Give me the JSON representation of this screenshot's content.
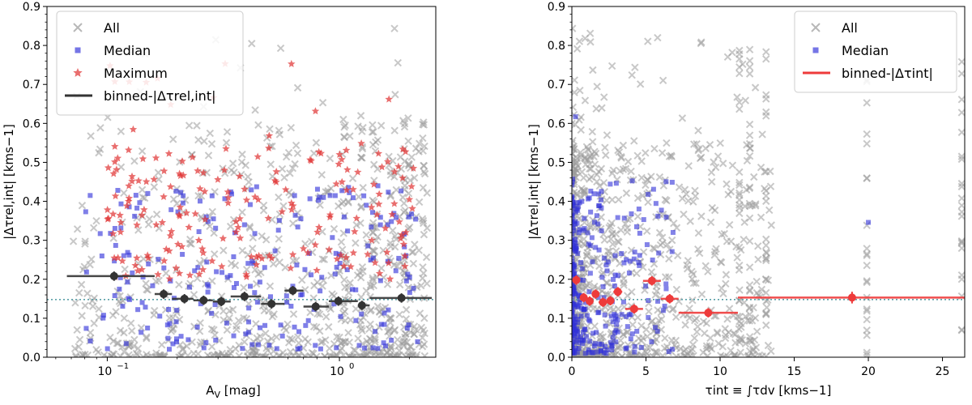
{
  "chart_data": [
    {
      "type": "scatter",
      "id": "left",
      "xlabel": "A",
      "xlabel_sub": "V",
      "xlabel_unit": " [mag]",
      "ylabel": "|Δτrel,int| [kms−1]",
      "xscale": "log",
      "xlim": [
        0.055,
        2.6
      ],
      "ylim": [
        0,
        0.9
      ],
      "xticks": [
        {
          "value": 0.1,
          "label": "10",
          "exp": "−1"
        },
        {
          "value": 1.0,
          "label": "10",
          "exp": "0"
        }
      ],
      "yticks": [
        0,
        0.1,
        0.2,
        0.3,
        0.4,
        0.5,
        0.6,
        0.7,
        0.8,
        0.9
      ],
      "ytick_labels": [
        "0.0",
        "0.1",
        "0.2",
        "0.3",
        "0.4",
        "0.5",
        "0.6",
        "0.7",
        "0.8",
        "0.9"
      ],
      "reference_line": 0.148,
      "legend": [
        "All",
        "Median",
        "Maximum",
        "binned-|Δτrel,int|"
      ],
      "legend_position": "top-left",
      "binned": [
        {
          "x": 0.107,
          "y": 0.208,
          "xlo": 0.067,
          "xhi": 0.16,
          "err": 0.012
        },
        {
          "x": 0.175,
          "y": 0.162,
          "xlo": 0.16,
          "xhi": 0.19,
          "err": 0.012
        },
        {
          "x": 0.215,
          "y": 0.15,
          "xlo": 0.19,
          "xhi": 0.235,
          "err": 0.012
        },
        {
          "x": 0.26,
          "y": 0.146,
          "xlo": 0.235,
          "xhi": 0.285,
          "err": 0.012
        },
        {
          "x": 0.31,
          "y": 0.143,
          "xlo": 0.285,
          "xhi": 0.34,
          "err": 0.012
        },
        {
          "x": 0.39,
          "y": 0.156,
          "xlo": 0.34,
          "xhi": 0.46,
          "err": 0.012
        },
        {
          "x": 0.51,
          "y": 0.137,
          "xlo": 0.46,
          "xhi": 0.58,
          "err": 0.012
        },
        {
          "x": 0.63,
          "y": 0.171,
          "xlo": 0.58,
          "xhi": 0.7,
          "err": 0.012
        },
        {
          "x": 0.79,
          "y": 0.13,
          "xlo": 0.7,
          "xhi": 0.9,
          "err": 0.012
        },
        {
          "x": 0.99,
          "y": 0.144,
          "xlo": 0.9,
          "xhi": 1.2,
          "err": 0.012
        },
        {
          "x": 1.25,
          "y": 0.133,
          "xlo": 1.2,
          "xhi": 1.35,
          "err": 0.012
        },
        {
          "x": 1.85,
          "y": 0.152,
          "xlo": 1.35,
          "xhi": 2.5,
          "err": 0.012
        }
      ],
      "binned_color": "#333333"
    },
    {
      "type": "scatter",
      "id": "right",
      "xlabel": "τint ≡ ∫τdv [kms−1]",
      "ylabel": "|Δτrel,int| [kms−1]",
      "xscale": "linear",
      "xlim": [
        0,
        26.5
      ],
      "ylim": [
        0,
        0.9
      ],
      "xticks": [
        0,
        5,
        10,
        15,
        20,
        25
      ],
      "yticks": [
        0,
        0.1,
        0.2,
        0.3,
        0.4,
        0.5,
        0.6,
        0.7,
        0.8,
        0.9
      ],
      "ytick_labels": [
        "0.0",
        "0.1",
        "0.2",
        "0.3",
        "0.4",
        "0.5",
        "0.6",
        "0.7",
        "0.8",
        "0.9"
      ],
      "reference_line": 0.148,
      "legend": [
        "All",
        "Median",
        "binned-|Δτint|"
      ],
      "legend_position": "top-right",
      "binned": [
        {
          "x": 0.3,
          "y": 0.198,
          "xlo": 0.15,
          "xhi": 0.45,
          "err": 0.012
        },
        {
          "x": 0.8,
          "y": 0.153,
          "xlo": 0.6,
          "xhi": 1.0,
          "err": 0.012
        },
        {
          "x": 1.2,
          "y": 0.144,
          "xlo": 1.0,
          "xhi": 1.4,
          "err": 0.012
        },
        {
          "x": 1.6,
          "y": 0.162,
          "xlo": 1.4,
          "xhi": 1.8,
          "err": 0.012
        },
        {
          "x": 2.1,
          "y": 0.141,
          "xlo": 1.8,
          "xhi": 2.4,
          "err": 0.012
        },
        {
          "x": 2.6,
          "y": 0.145,
          "xlo": 2.4,
          "xhi": 2.8,
          "err": 0.012
        },
        {
          "x": 3.1,
          "y": 0.168,
          "xlo": 2.8,
          "xhi": 3.4,
          "err": 0.012
        },
        {
          "x": 4.2,
          "y": 0.124,
          "xlo": 3.6,
          "xhi": 4.8,
          "err": 0.012
        },
        {
          "x": 5.4,
          "y": 0.196,
          "xlo": 4.8,
          "xhi": 6.0,
          "err": 0.012
        },
        {
          "x": 6.6,
          "y": 0.15,
          "xlo": 6.0,
          "xhi": 7.2,
          "err": 0.012
        },
        {
          "x": 9.2,
          "y": 0.114,
          "xlo": 7.2,
          "xhi": 11.2,
          "err": 0.012
        },
        {
          "x": 18.9,
          "y": 0.153,
          "xlo": 11.2,
          "xhi": 26.5,
          "err": 0.015
        }
      ],
      "binned_color": "#ee3b3b"
    }
  ]
}
